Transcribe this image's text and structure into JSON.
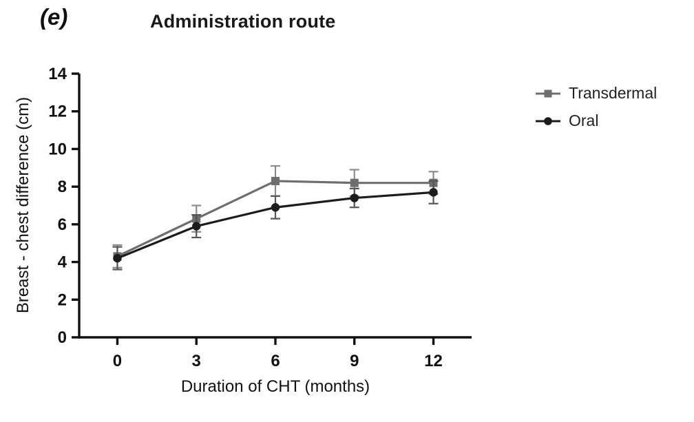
{
  "panel_label": "(e)",
  "chart_data": {
    "type": "line",
    "title": "Administration route",
    "xlabel": "Duration of CHT (months)",
    "ylabel": "Breast - chest difference (cm)",
    "x": [
      0,
      3,
      6,
      9,
      12
    ],
    "xlim": [
      -1.45,
      13.45
    ],
    "ylim": [
      0,
      14
    ],
    "yticks": [
      0,
      2,
      4,
      6,
      8,
      10,
      12,
      14
    ],
    "grid": false,
    "legend_position": "right",
    "series": [
      {
        "name": "Transdermal",
        "marker": "square",
        "color": "#6e6e6e",
        "error_color": "#8c8c8c",
        "values": [
          4.3,
          6.3,
          8.3,
          8.2,
          8.2
        ],
        "errors": [
          0.6,
          0.7,
          0.8,
          0.7,
          0.6
        ]
      },
      {
        "name": "Oral",
        "marker": "circle",
        "color": "#1c1c1c",
        "error_color": "#555555",
        "values": [
          4.2,
          5.9,
          6.9,
          7.4,
          7.7
        ],
        "errors": [
          0.6,
          0.6,
          0.6,
          0.5,
          0.6
        ]
      }
    ]
  }
}
